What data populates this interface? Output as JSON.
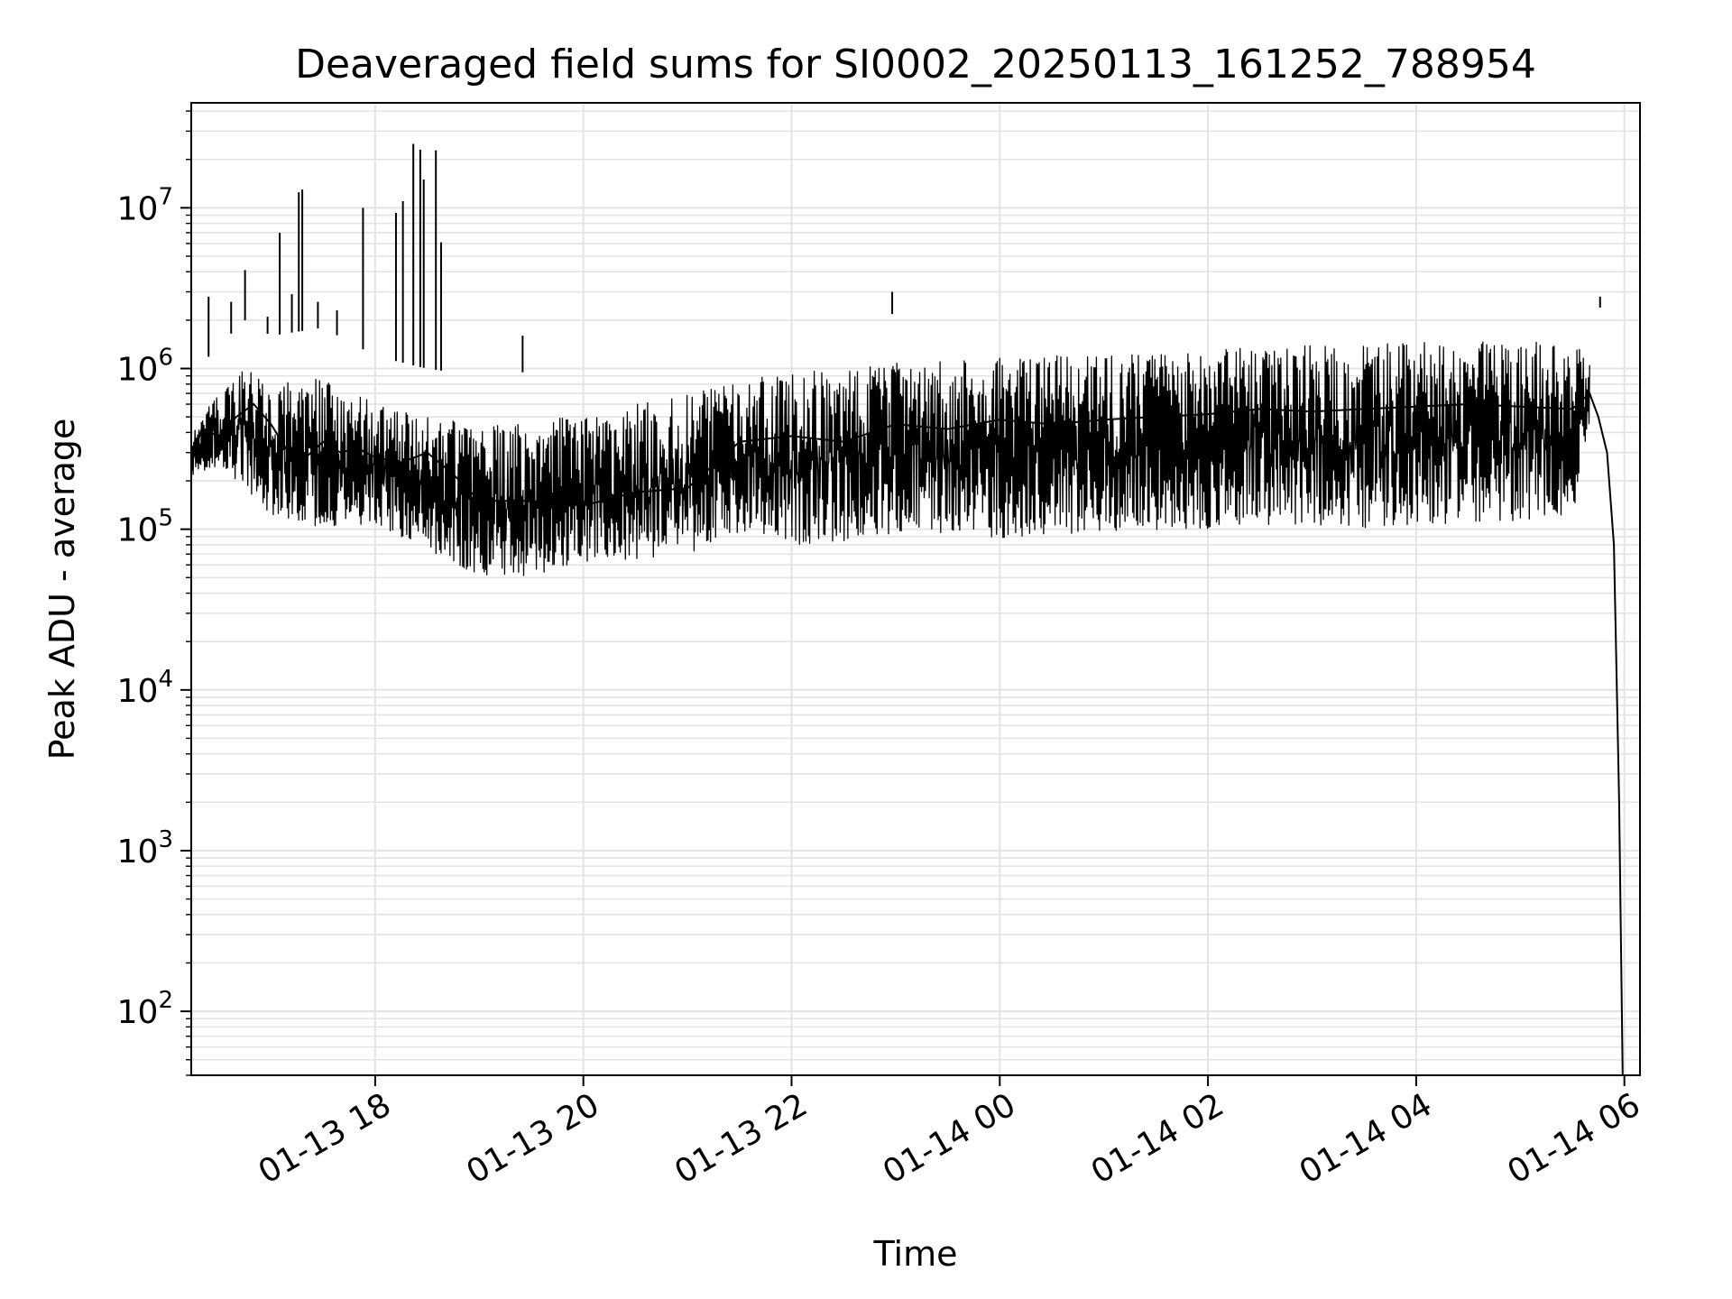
{
  "chart_data": {
    "type": "line",
    "title": "Deaveraged field sums for SI0002_20250113_161252_788954",
    "xlabel": "Time",
    "ylabel": "Peak ADU - average",
    "yscale": "log",
    "ylim": [
      40,
      45000000
    ],
    "xlim": [
      "2025-01-13 16:14",
      "2025-01-14 06:09"
    ],
    "grid": true,
    "line_color": "#000000",
    "grid_color": "#e3e3e3",
    "x_ticks": [
      {
        "value": "2025-01-13 18:00",
        "label": "01-13 18"
      },
      {
        "value": "2025-01-13 20:00",
        "label": "01-13 20"
      },
      {
        "value": "2025-01-13 22:00",
        "label": "01-13 22"
      },
      {
        "value": "2025-01-14 00:00",
        "label": "01-14 00"
      },
      {
        "value": "2025-01-14 02:00",
        "label": "01-14 02"
      },
      {
        "value": "2025-01-14 04:00",
        "label": "01-14 04"
      },
      {
        "value": "2025-01-14 06:00",
        "label": "01-14 06"
      }
    ],
    "y_ticks": [
      {
        "value": 100,
        "base": "10",
        "exp": "2"
      },
      {
        "value": 1000,
        "base": "10",
        "exp": "3"
      },
      {
        "value": 10000,
        "base": "10",
        "exp": "4"
      },
      {
        "value": 100000,
        "base": "10",
        "exp": "5"
      },
      {
        "value": 1000000,
        "base": "10",
        "exp": "6"
      },
      {
        "value": 10000000,
        "base": "10",
        "exp": "7"
      }
    ],
    "series": [
      {
        "points": [
          [
            "2025-01-13 16:14",
            250000
          ],
          [
            "2025-01-13 16:20",
            420000
          ],
          [
            "2025-01-13 16:30",
            380000
          ],
          [
            "2025-01-13 16:40",
            500000
          ],
          [
            "2025-01-13 16:50",
            600000
          ],
          [
            "2025-01-13 17:00",
            450000
          ],
          [
            "2025-01-13 17:10",
            300000
          ],
          [
            "2025-01-13 17:20",
            280000
          ],
          [
            "2025-01-13 17:30",
            350000
          ],
          [
            "2025-01-13 17:40",
            300000
          ],
          [
            "2025-01-13 17:50",
            320000
          ],
          [
            "2025-01-13 18:00",
            280000
          ],
          [
            "2025-01-13 18:15",
            260000
          ],
          [
            "2025-01-13 18:30",
            300000
          ],
          [
            "2025-01-13 18:45",
            220000
          ],
          [
            "2025-01-13 19:00",
            150000
          ],
          [
            "2025-01-13 19:30",
            150000
          ],
          [
            "2025-01-13 20:00",
            140000
          ],
          [
            "2025-01-13 20:30",
            170000
          ],
          [
            "2025-01-13 21:00",
            180000
          ],
          [
            "2025-01-13 21:30",
            350000
          ],
          [
            "2025-01-13 22:00",
            380000
          ],
          [
            "2025-01-13 22:30",
            350000
          ],
          [
            "2025-01-13 23:00",
            450000
          ],
          [
            "2025-01-13 23:30",
            420000
          ],
          [
            "2025-01-14 00:00",
            480000
          ],
          [
            "2025-01-14 00:30",
            450000
          ],
          [
            "2025-01-14 01:00",
            480000
          ],
          [
            "2025-01-14 01:30",
            500000
          ],
          [
            "2025-01-14 02:00",
            520000
          ],
          [
            "2025-01-14 02:30",
            560000
          ],
          [
            "2025-01-14 03:00",
            540000
          ],
          [
            "2025-01-14 03:30",
            560000
          ],
          [
            "2025-01-14 04:00",
            580000
          ],
          [
            "2025-01-14 04:30",
            600000
          ],
          [
            "2025-01-14 05:00",
            580000
          ],
          [
            "2025-01-14 05:30",
            560000
          ],
          [
            "2025-01-14 05:40",
            700000
          ],
          [
            "2025-01-14 05:45",
            500000
          ],
          [
            "2025-01-14 05:50",
            300000
          ],
          [
            "2025-01-14 05:54",
            80000
          ],
          [
            "2025-01-14 05:57",
            2000
          ],
          [
            "2025-01-14 05:59",
            40
          ]
        ],
        "envelope": [
          [
            "2025-01-13 16:14",
            200000,
            450000
          ],
          [
            "2025-01-13 16:30",
            220000,
            700000
          ],
          [
            "2025-01-13 16:45",
            150000,
            1000000
          ],
          [
            "2025-01-13 17:00",
            100000,
            800000
          ],
          [
            "2025-01-13 17:30",
            80000,
            900000
          ],
          [
            "2025-01-13 18:00",
            90000,
            600000
          ],
          [
            "2025-01-13 18:30",
            60000,
            500000
          ],
          [
            "2025-01-13 19:00",
            40000,
            450000
          ],
          [
            "2025-01-13 19:30",
            40000,
            480000
          ],
          [
            "2025-01-13 20:00",
            50000,
            500000
          ],
          [
            "2025-01-13 20:30",
            50000,
            600000
          ],
          [
            "2025-01-13 21:00",
            55000,
            700000
          ],
          [
            "2025-01-13 21:30",
            70000,
            850000
          ],
          [
            "2025-01-13 22:00",
            60000,
            950000
          ],
          [
            "2025-01-13 22:30",
            60000,
            1000000
          ],
          [
            "2025-01-13 23:00",
            70000,
            1100000
          ],
          [
            "2025-01-13 23:30",
            70000,
            1100000
          ],
          [
            "2025-01-14 00:00",
            65000,
            1200000
          ],
          [
            "2025-01-14 00:30",
            70000,
            1200000
          ],
          [
            "2025-01-14 01:00",
            70000,
            1200000
          ],
          [
            "2025-01-14 01:30",
            70000,
            1300000
          ],
          [
            "2025-01-14 02:00",
            75000,
            1300000
          ],
          [
            "2025-01-14 02:30",
            80000,
            1400000
          ],
          [
            "2025-01-14 03:00",
            80000,
            1400000
          ],
          [
            "2025-01-14 03:30",
            75000,
            1450000
          ],
          [
            "2025-01-14 04:00",
            80000,
            1500000
          ],
          [
            "2025-01-14 04:30",
            80000,
            1500000
          ],
          [
            "2025-01-14 05:00",
            85000,
            1500000
          ],
          [
            "2025-01-14 05:30",
            90000,
            1400000
          ],
          [
            "2025-01-14 05:40",
            400000,
            1200000
          ]
        ],
        "spikes": [
          [
            "2025-01-13 16:24",
            2800000
          ],
          [
            "2025-01-13 16:37",
            2600000
          ],
          [
            "2025-01-13 16:45",
            4100000
          ],
          [
            "2025-01-13 16:58",
            2100000
          ],
          [
            "2025-01-13 17:05",
            7000000
          ],
          [
            "2025-01-13 17:12",
            2900000
          ],
          [
            "2025-01-13 17:16",
            12500000
          ],
          [
            "2025-01-13 17:18",
            13000000
          ],
          [
            "2025-01-13 17:27",
            2600000
          ],
          [
            "2025-01-13 17:38",
            2300000
          ],
          [
            "2025-01-13 17:53",
            10000000
          ],
          [
            "2025-01-13 18:12",
            9300000
          ],
          [
            "2025-01-13 18:16",
            11000000
          ],
          [
            "2025-01-13 18:22",
            25000000
          ],
          [
            "2025-01-13 18:26",
            23000000
          ],
          [
            "2025-01-13 18:28",
            15000000
          ],
          [
            "2025-01-13 18:35",
            22800000
          ],
          [
            "2025-01-13 18:38",
            6100000
          ],
          [
            "2025-01-13 19:25",
            1600000
          ],
          [
            "2025-01-13 22:58",
            3000000
          ],
          [
            "2025-01-14 05:46",
            2800000
          ]
        ]
      }
    ]
  }
}
